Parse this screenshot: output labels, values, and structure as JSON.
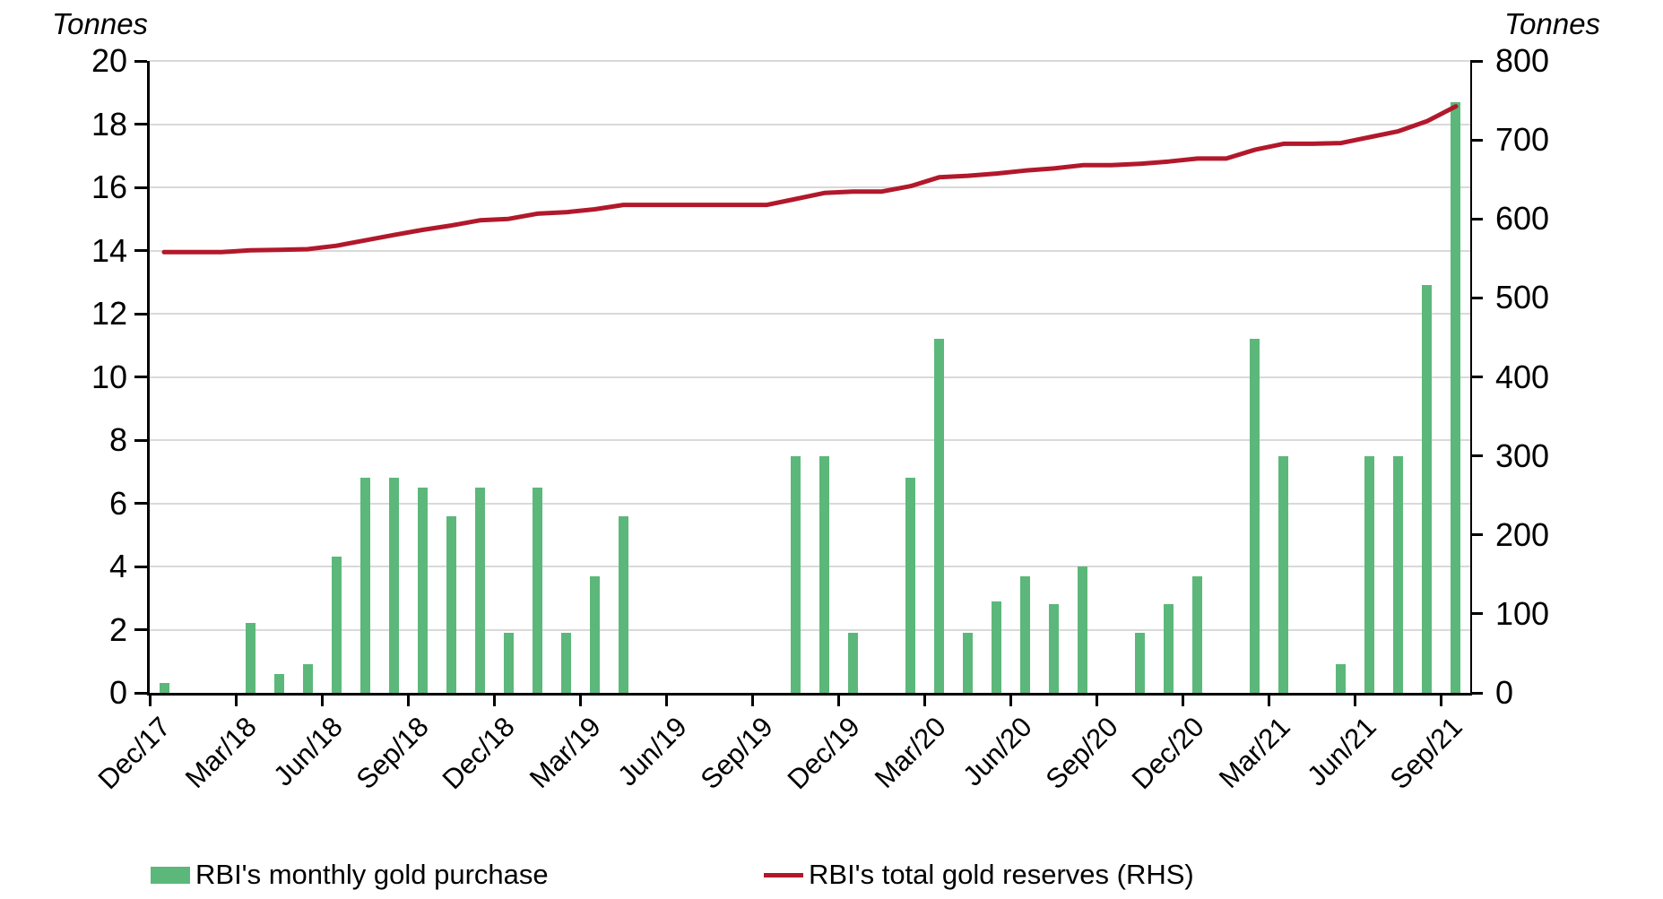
{
  "chart_data": {
    "type": "bar",
    "title": "",
    "categories": [
      "Dec/17",
      "Jan/18",
      "Feb/18",
      "Mar/18",
      "Apr/18",
      "May/18",
      "Jun/18",
      "Jul/18",
      "Aug/18",
      "Sep/18",
      "Oct/18",
      "Nov/18",
      "Dec/18",
      "Jan/19",
      "Feb/19",
      "Mar/19",
      "Apr/19",
      "May/19",
      "Jun/19",
      "Jul/19",
      "Aug/19",
      "Sep/19",
      "Oct/19",
      "Nov/19",
      "Dec/19",
      "Jan/20",
      "Feb/20",
      "Mar/20",
      "Apr/20",
      "May/20",
      "Jun/20",
      "Jul/20",
      "Aug/20",
      "Sep/20",
      "Oct/20",
      "Nov/20",
      "Dec/20",
      "Jan/21",
      "Feb/21",
      "Mar/21",
      "Apr/21",
      "May/21",
      "Jun/21",
      "Jul/21",
      "Aug/21",
      "Sep/21"
    ],
    "x_axis": {
      "tick_labels": [
        "Dec/17",
        "Mar/18",
        "Jun/18",
        "Sep/18",
        "Dec/18",
        "Mar/19",
        "Jun/19",
        "Sep/19",
        "Dec/19",
        "Mar/20",
        "Jun/20",
        "Sep/20",
        "Dec/20",
        "Mar/21",
        "Jun/21",
        "Sep/21"
      ],
      "label_every_n_months": 3
    },
    "left_axis": {
      "label": "Tonnes",
      "min": 0,
      "max": 20,
      "step": 2
    },
    "right_axis": {
      "label": "Tonnes",
      "min": 0,
      "max": 800,
      "step": 100
    },
    "grid": {
      "show": true,
      "color": "#d9d9d9"
    },
    "legend_position": "bottom",
    "series": [
      {
        "name": "RBI's monthly gold purchase",
        "type": "bar",
        "axis": "left",
        "color": "#5CB87A",
        "values": [
          0.3,
          0,
          0,
          2.2,
          0.6,
          0.9,
          4.3,
          6.8,
          6.8,
          6.5,
          5.6,
          6.5,
          1.9,
          6.5,
          1.9,
          3.7,
          5.6,
          0,
          0,
          0,
          0,
          0,
          7.5,
          7.5,
          1.9,
          0,
          6.8,
          11.2,
          1.9,
          2.9,
          3.7,
          2.8,
          4.0,
          0,
          1.9,
          2.8,
          3.7,
          0,
          11.2,
          7.5,
          0,
          0.9,
          7.5,
          7.5,
          12.9,
          18.7
        ]
      },
      {
        "name": "RBI's total gold reserves (RHS)",
        "type": "line",
        "axis": "right",
        "color": "#B2182B",
        "values": [
          558.0,
          558.0,
          558.0,
          560.2,
          560.8,
          561.7,
          566.0,
          572.8,
          579.6,
          586.1,
          591.7,
          598.2,
          600.1,
          606.6,
          608.5,
          612.2,
          617.8,
          617.8,
          617.8,
          617.8,
          617.8,
          617.8,
          625.3,
          632.8,
          634.7,
          634.7,
          641.5,
          652.7,
          654.6,
          657.5,
          661.2,
          664.0,
          668.0,
          668.0,
          669.9,
          672.7,
          676.4,
          676.4,
          687.6,
          695.1,
          695.1,
          696.0,
          703.5,
          711.0,
          723.9,
          742.6
        ]
      }
    ]
  }
}
